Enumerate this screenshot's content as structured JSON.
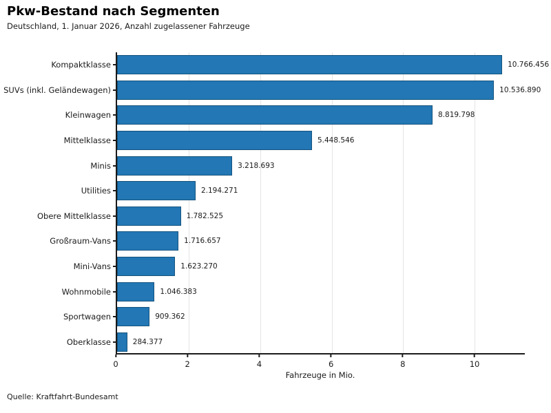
{
  "header": {
    "title": "Pkw-Bestand nach Segmenten",
    "subtitle": "Deutschland, 1. Januar 2026, Anzahl zugelassener Fahrzeuge"
  },
  "footer": {
    "source": "Quelle: Kraftfahrt-Bundesamt"
  },
  "chart_data": {
    "type": "bar",
    "orientation": "horizontal",
    "title": "Pkw-Bestand nach Segmenten",
    "subtitle": "Deutschland, 1. Januar 2026, Anzahl zugelassener Fahrzeuge",
    "xlabel": "Fahrzeuge in Mio.",
    "categories": [
      "Kompaktklasse",
      "SUVs (inkl. Geländewagen)",
      "Kleinwagen",
      "Mittelklasse",
      "Minis",
      "Utilities",
      "Obere Mittelklasse",
      "Großraum-Vans",
      "Mini-Vans",
      "Wohnmobile",
      "Sportwagen",
      "Oberklasse"
    ],
    "values": [
      10766456,
      10536890,
      8819798,
      5448546,
      3218693,
      2194271,
      1782525,
      1716657,
      1623270,
      1046383,
      909362,
      284377
    ],
    "value_labels": [
      "10.766.456",
      "10.536.890",
      "8.819.798",
      "5.448.546",
      "3.218.693",
      "2.194.271",
      "1.782.525",
      "1.716.657",
      "1.623.270",
      "1.046.383",
      "909.362",
      "284.377"
    ],
    "xticks": [
      0,
      2,
      4,
      6,
      8,
      10
    ],
    "xlim": [
      0,
      11.4
    ],
    "grid": true,
    "legend": false,
    "bar_color": "#2277b4",
    "bar_edge_color": "#15537e",
    "source": "Quelle: Kraftfahrt-Bundesamt"
  }
}
